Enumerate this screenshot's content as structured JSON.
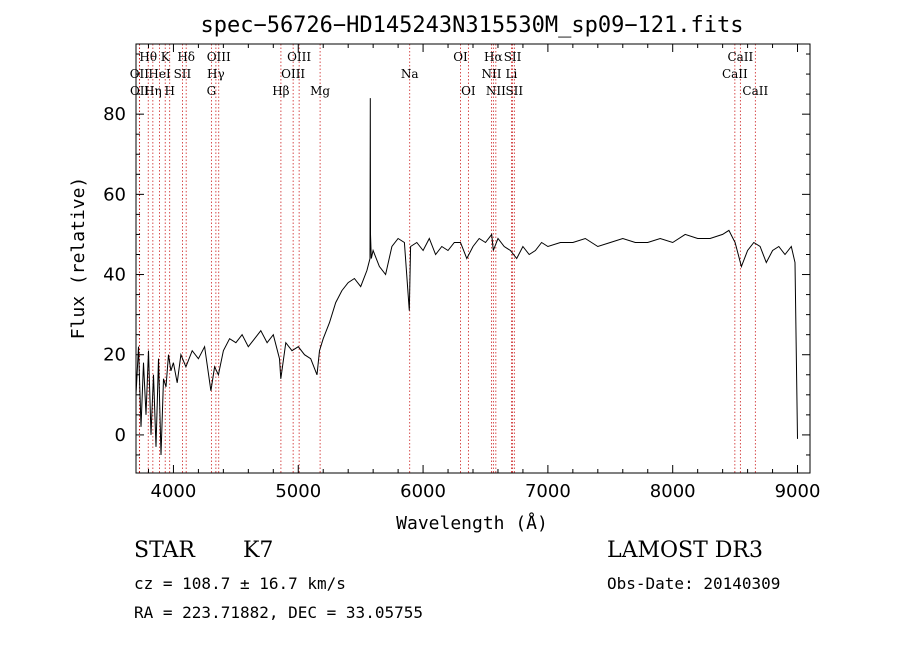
{
  "colors": {
    "line": "#000000",
    "marker": "#cc2222",
    "background": "#ffffff"
  },
  "chart_data": {
    "type": "line",
    "title": "spec−56726−HD145243N315530M_sp09−121.fits",
    "xlabel": "Wavelength (Å)",
    "ylabel": "Flux (relative)",
    "xlim": [
      3700,
      9100
    ],
    "ylim": [
      -9.5,
      97.5
    ],
    "xticks": [
      4000,
      5000,
      6000,
      7000,
      8000,
      9000
    ],
    "xtick_labels": [
      "4000",
      "5000",
      "6000",
      "7000",
      "8000",
      "9000"
    ],
    "yticks": [
      0,
      20,
      40,
      60,
      80
    ],
    "ytick_labels": [
      "0",
      "20",
      "40",
      "60",
      "80"
    ],
    "series": [
      {
        "name": "spectrum",
        "x": [
          3700,
          3720,
          3740,
          3760,
          3780,
          3800,
          3820,
          3840,
          3860,
          3880,
          3900,
          3920,
          3940,
          3960,
          3980,
          4000,
          4030,
          4060,
          4100,
          4150,
          4200,
          4250,
          4300,
          4330,
          4360,
          4400,
          4450,
          4500,
          4550,
          4600,
          4650,
          4700,
          4750,
          4800,
          4850,
          4860,
          4900,
          4950,
          5000,
          5050,
          5100,
          5150,
          5170,
          5200,
          5250,
          5300,
          5350,
          5400,
          5450,
          5500,
          5550,
          5575,
          5577,
          5579,
          5585,
          5600,
          5650,
          5700,
          5750,
          5800,
          5850,
          5890,
          5900,
          5950,
          6000,
          6050,
          6100,
          6150,
          6200,
          6250,
          6300,
          6350,
          6400,
          6450,
          6500,
          6550,
          6563,
          6600,
          6650,
          6700,
          6750,
          6800,
          6850,
          6900,
          6950,
          7000,
          7100,
          7200,
          7300,
          7400,
          7500,
          7600,
          7700,
          7800,
          7900,
          8000,
          8100,
          8200,
          8300,
          8400,
          8450,
          8500,
          8550,
          8600,
          8650,
          8700,
          8750,
          8800,
          8850,
          8900,
          8950,
          8980,
          9000
        ],
        "values": [
          10,
          22,
          2,
          18,
          5,
          21,
          0,
          15,
          -3,
          19,
          -5,
          14,
          12,
          20,
          16,
          18,
          13,
          20,
          17,
          21,
          19,
          22,
          11,
          17,
          15,
          21,
          24,
          23,
          25,
          22,
          24,
          26,
          23,
          25,
          19,
          14,
          23,
          21,
          22,
          20,
          19,
          15,
          21,
          24,
          28,
          33,
          36,
          38,
          39,
          37,
          41,
          44,
          84,
          50,
          44,
          46,
          42,
          40,
          47,
          49,
          48,
          31,
          47,
          48,
          46,
          49,
          45,
          47,
          46,
          48,
          48,
          44,
          47,
          49,
          48,
          50,
          46,
          49,
          47,
          46,
          44,
          47,
          45,
          46,
          48,
          47,
          48,
          48,
          49,
          47,
          48,
          49,
          48,
          48,
          49,
          48,
          50,
          49,
          49,
          50,
          51,
          48,
          42,
          46,
          48,
          47,
          43,
          46,
          47,
          45,
          47,
          43,
          -1
        ]
      }
    ],
    "markers": [
      {
        "name": "CaII H",
        "wavelength": 3934,
        "label": "K",
        "row": 0
      },
      {
        "name": "H-theta",
        "wavelength": 3798,
        "label": "Hθ",
        "row": 0
      },
      {
        "name": "H-delta",
        "wavelength": 4102,
        "label": "Hδ",
        "row": 0
      },
      {
        "name": "OIII 4363",
        "wavelength": 4363,
        "label": "OIII",
        "row": 0
      },
      {
        "name": "OIII 5007",
        "wavelength": 5007,
        "label": "OIII",
        "row": 0
      },
      {
        "name": "OI 6300",
        "wavelength": 6300,
        "label": "OI",
        "row": 0
      },
      {
        "name": "H-alpha",
        "wavelength": 6563,
        "label": "Hα",
        "row": 0
      },
      {
        "name": "SII 6717",
        "wavelength": 6717,
        "label": "SII",
        "row": 0
      },
      {
        "name": "CaII 8542",
        "wavelength": 8542,
        "label": "CaII",
        "row": 0
      },
      {
        "name": "OII 3727",
        "wavelength": 3727,
        "label": "OII",
        "row": 1
      },
      {
        "name": "HeI",
        "wavelength": 3889,
        "label": "HeI",
        "row": 1
      },
      {
        "name": "SII 4072",
        "wavelength": 4072,
        "label": "SII",
        "row": 1
      },
      {
        "name": "H-gamma",
        "wavelength": 4340,
        "label": "Hγ",
        "row": 1
      },
      {
        "name": "OIII 4959",
        "wavelength": 4959,
        "label": "OIII",
        "row": 1
      },
      {
        "name": "NaD",
        "wavelength": 5893,
        "label": "Na",
        "row": 1
      },
      {
        "name": "NII 6548",
        "wavelength": 6548,
        "label": "NII",
        "row": 1
      },
      {
        "name": "Li",
        "wavelength": 6708,
        "label": "Li",
        "row": 1
      },
      {
        "name": "CaII 8498",
        "wavelength": 8498,
        "label": "CaII",
        "row": 1
      },
      {
        "name": "OII 3729",
        "wavelength": 3729,
        "label": "OII",
        "row": 2
      },
      {
        "name": "H-eta",
        "wavelength": 3835,
        "label": "Hη",
        "row": 2
      },
      {
        "name": "H-epsilon",
        "wavelength": 3970,
        "label": "H",
        "row": 2
      },
      {
        "name": "G band",
        "wavelength": 4304,
        "label": "G",
        "row": 2
      },
      {
        "name": "H-beta",
        "wavelength": 4861,
        "label": "Hβ",
        "row": 2
      },
      {
        "name": "Mg",
        "wavelength": 5175,
        "label": "Mg",
        "row": 2
      },
      {
        "name": "OI 6363",
        "wavelength": 6363,
        "label": "OI",
        "row": 2
      },
      {
        "name": "NII 6583",
        "wavelength": 6583,
        "label": "NII",
        "row": 2
      },
      {
        "name": "SII 6731",
        "wavelength": 6731,
        "label": "SII",
        "row": 2
      },
      {
        "name": "CaII 8662",
        "wavelength": 8662,
        "label": "CaII",
        "row": 2
      }
    ]
  },
  "info": {
    "class_label": "STAR",
    "subclass": "K7",
    "survey": "LAMOST DR3",
    "cz": "cz = 108.7 ± 16.7 km/s",
    "obs_date": "Obs-Date: 20140309",
    "coords": "RA = 223.71882, DEC =  33.05755"
  }
}
